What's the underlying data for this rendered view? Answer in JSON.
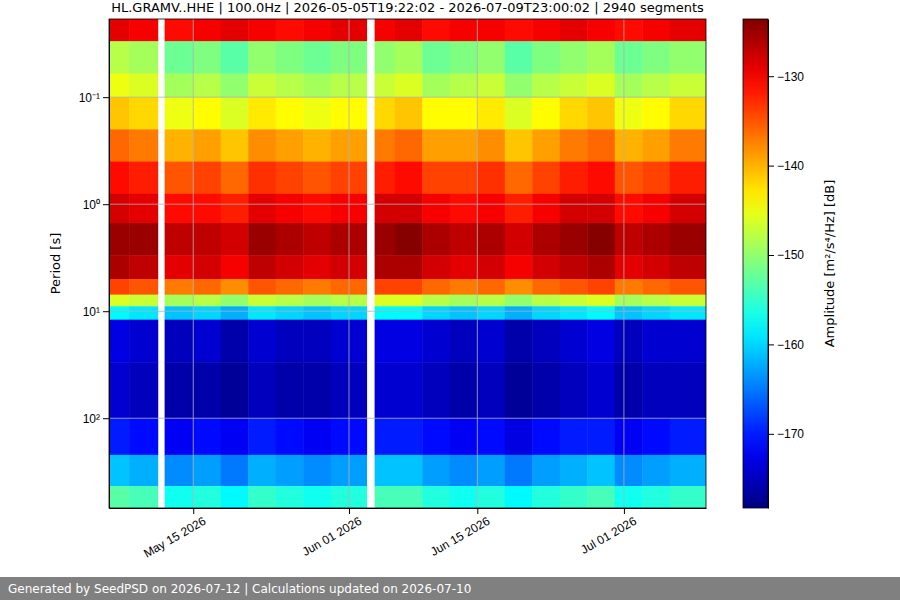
{
  "chart_data": {
    "type": "heatmap",
    "title": "HL.GRAMV..HHE | 100.0Hz | 2026-05-05T19:22:02 - 2026-07-09T23:00:02 | 2940 segments",
    "y_label": "Period [s]",
    "annotations": [
      "Generated by SeedPSD on 2026-07-12 | Calculations updated on 2026-07-10"
    ],
    "log": "y",
    "grid": true,
    "xlim": [
      "2026-05-05T19:22:02",
      "2026-07-09T23:00:02"
    ],
    "xticks": [
      {
        "value": "2026-05-15",
        "label": "May 15 2026"
      },
      {
        "value": "2026-06-01",
        "label": "Jun 01 2026"
      },
      {
        "value": "2026-06-15",
        "label": "Jun 15 2026"
      },
      {
        "value": "2026-07-01",
        "label": "Jul 01 2026"
      }
    ],
    "ylim": [
      690,
      0.0186
    ],
    "yticks": [
      {
        "value": 0.1,
        "label": "10⁻¹"
      },
      {
        "value": 1,
        "label": "10⁰"
      },
      {
        "value": 10,
        "label": "10¹"
      },
      {
        "value": 100,
        "label": "10²"
      }
    ],
    "x_edges": [
      "2026-05-05T19:22:02",
      "2026-05-08T00:00:00",
      "2026-05-11T03:00:00",
      "2026-05-11T21:00:00",
      "2026-05-15T00:00:00",
      "2026-05-18T00:00:00",
      "2026-05-21T00:00:00",
      "2026-05-24T00:00:00",
      "2026-05-27T00:00:00",
      "2026-05-30T00:00:00",
      "2026-06-02T22:00:00",
      "2026-06-03T19:00:00",
      "2026-06-06T00:00:00",
      "2026-06-09T00:00:00",
      "2026-06-12T00:00:00",
      "2026-06-15T00:00:00",
      "2026-06-18T00:00:00",
      "2026-06-21T00:00:00",
      "2026-06-24T00:00:00",
      "2026-06-27T00:00:00",
      "2026-06-30T00:00:00",
      "2026-07-03T00:00:00",
      "2026-07-06T00:00:00",
      "2026-07-09T23:00:02"
    ],
    "y_edges": [
      0.0186,
      0.03,
      0.06,
      0.1,
      0.2,
      0.4,
      0.8,
      1.5,
      3,
      5,
      7,
      9,
      12,
      30,
      100,
      220,
      430,
      690
    ],
    "values": [
      [
        -129,
        -130,
        null,
        -131,
        -130,
        -129,
        -130,
        -131,
        -130,
        -129,
        null,
        -130,
        -129,
        -131,
        -130,
        -130,
        -131,
        -130,
        -129,
        -130,
        -131,
        -130,
        -129
      ],
      [
        -148,
        -149,
        null,
        -152,
        -151,
        -153,
        -150,
        -151,
        -152,
        -151,
        null,
        -150,
        -149,
        -152,
        -151,
        -150,
        -153,
        -151,
        -150,
        -149,
        -152,
        -151,
        -150
      ],
      [
        -145,
        -146,
        null,
        -149,
        -148,
        -150,
        -147,
        -148,
        -149,
        -148,
        null,
        -147,
        -146,
        -149,
        -148,
        -147,
        -150,
        -148,
        -147,
        -146,
        -149,
        -148,
        -147
      ],
      [
        -141,
        -142,
        null,
        -145,
        -144,
        -146,
        -143,
        -144,
        -145,
        -144,
        null,
        -142,
        -141,
        -144,
        -144,
        -143,
        -146,
        -144,
        -142,
        -141,
        -145,
        -144,
        -142
      ],
      [
        -136,
        -137,
        null,
        -140,
        -139,
        -141,
        -138,
        -139,
        -140,
        -139,
        null,
        -137,
        -136,
        -139,
        -139,
        -138,
        -141,
        -139,
        -137,
        -136,
        -140,
        -139,
        -137
      ],
      [
        -131,
        -132,
        null,
        -135,
        -134,
        -136,
        -133,
        -134,
        -135,
        -134,
        null,
        -132,
        -131,
        -134,
        -134,
        -133,
        -136,
        -134,
        -132,
        -131,
        -135,
        -134,
        -132
      ],
      [
        -128,
        -129,
        null,
        -131,
        -131,
        -132,
        -129,
        -130,
        -131,
        -130,
        null,
        -128,
        -128,
        -130,
        -131,
        -130,
        -132,
        -130,
        -128,
        -128,
        -131,
        -130,
        -128
      ],
      [
        -125,
        -125,
        null,
        -127,
        -127,
        -128,
        -125,
        -126,
        -127,
        -126,
        null,
        -125,
        -124,
        -126,
        -127,
        -126,
        -128,
        -126,
        -125,
        -124,
        -127,
        -126,
        -125
      ],
      [
        -126,
        -127,
        null,
        -129,
        -128,
        -130,
        -127,
        -128,
        -129,
        -128,
        null,
        -126,
        -126,
        -128,
        -129,
        -128,
        -130,
        -128,
        -127,
        -126,
        -129,
        -128,
        -127
      ],
      [
        -134,
        -135,
        null,
        -137,
        -136,
        -138,
        -135,
        -136,
        -137,
        -136,
        null,
        -134,
        -134,
        -136,
        -137,
        -136,
        -138,
        -136,
        -135,
        -134,
        -137,
        -136,
        -135
      ],
      [
        -146,
        -147,
        null,
        -149,
        -148,
        -150,
        -147,
        -148,
        -149,
        -148,
        null,
        -146,
        -146,
        -148,
        -149,
        -148,
        -150,
        -148,
        -147,
        -146,
        -149,
        -148,
        -147
      ],
      [
        -158,
        -159,
        null,
        -161,
        -160,
        -162,
        -159,
        -160,
        -161,
        -160,
        null,
        -158,
        -158,
        -160,
        -161,
        -160,
        -162,
        -160,
        -159,
        -158,
        -161,
        -160,
        -159
      ],
      [
        -173,
        -174,
        null,
        -175,
        -174,
        -176,
        -174,
        -175,
        -175,
        -174,
        null,
        -173,
        -173,
        -174,
        -175,
        -174,
        -176,
        -175,
        -174,
        -173,
        -175,
        -174,
        -174
      ],
      [
        -174,
        -175,
        null,
        -176,
        -176,
        -177,
        -175,
        -176,
        -176,
        -175,
        null,
        -174,
        -174,
        -175,
        -176,
        -175,
        -177,
        -176,
        -175,
        -174,
        -176,
        -175,
        -175
      ],
      [
        -170,
        -171,
        null,
        -172,
        -171,
        -172,
        -170,
        -171,
        -172,
        -171,
        null,
        -170,
        -170,
        -171,
        -172,
        -171,
        -173,
        -171,
        -170,
        -170,
        -172,
        -171,
        -170
      ],
      [
        -161,
        -162,
        null,
        -164,
        -163,
        -165,
        -162,
        -163,
        -164,
        -163,
        null,
        -161,
        -161,
        -163,
        -164,
        -163,
        -165,
        -163,
        -162,
        -161,
        -164,
        -163,
        -162
      ],
      [
        -153,
        -154,
        null,
        -157,
        -156,
        -158,
        -155,
        -156,
        -157,
        -156,
        null,
        -154,
        -154,
        -156,
        -157,
        -156,
        -158,
        -156,
        -155,
        -154,
        -157,
        -156,
        -155
      ]
    ],
    "colorbar": {
      "label": "Amplitude [m²/s⁴/Hz] [dB]",
      "lim": [
        -178.3,
        -123.6
      ],
      "ticks": [
        {
          "value": -130,
          "label": "−130"
        },
        {
          "value": -140,
          "label": "−140"
        },
        {
          "value": -150,
          "label": "−150"
        },
        {
          "value": -160,
          "label": "−160"
        },
        {
          "value": -170,
          "label": "−170"
        }
      ]
    }
  }
}
